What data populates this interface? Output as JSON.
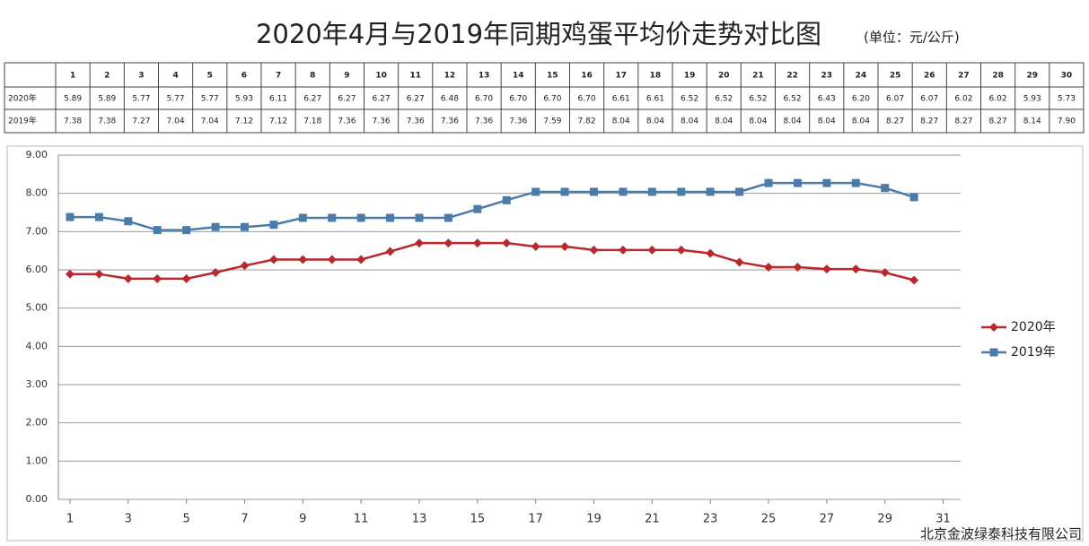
{
  "chart_data": {
    "type": "line",
    "title": "2020年4月与2019年同期鸡蛋平均价走势对比图",
    "subtitle": "(单位：元/公斤)",
    "watermark": "北京金波绿泰科技有限公司",
    "x": [
      1,
      2,
      3,
      4,
      5,
      6,
      7,
      8,
      9,
      10,
      11,
      12,
      13,
      14,
      15,
      16,
      17,
      18,
      19,
      20,
      21,
      22,
      23,
      24,
      25,
      26,
      27,
      28,
      29,
      30
    ],
    "series": [
      {
        "name": "2020年",
        "color": "#b8282e",
        "marker": "diamond",
        "values": [
          5.89,
          5.89,
          5.77,
          5.77,
          5.77,
          5.93,
          6.11,
          6.27,
          6.27,
          6.27,
          6.27,
          6.48,
          6.7,
          6.7,
          6.7,
          6.7,
          6.61,
          6.61,
          6.52,
          6.52,
          6.52,
          6.52,
          6.43,
          6.2,
          6.07,
          6.07,
          6.02,
          6.02,
          5.93,
          5.73
        ],
        "value_labels": [
          "5.89",
          "5.89",
          "5.77",
          "5.77",
          "5.77",
          "5.93",
          "6.11",
          "6.27",
          "6.27",
          "6.27",
          "6.27",
          "6.48",
          "6.70",
          "6.70",
          "6.70",
          "6.70",
          "6.61",
          "6.61",
          "6.52",
          "6.52",
          "6.52",
          "6.52",
          "6.43",
          "6.20",
          "6.07",
          "6.07",
          "6.02",
          "6.02",
          "5.93",
          "5.73"
        ]
      },
      {
        "name": "2019年",
        "color": "#4b7ba8",
        "marker": "square",
        "values": [
          7.38,
          7.38,
          7.27,
          7.04,
          7.04,
          7.12,
          7.12,
          7.18,
          7.36,
          7.36,
          7.36,
          7.36,
          7.36,
          7.36,
          7.59,
          7.82,
          8.04,
          8.04,
          8.04,
          8.04,
          8.04,
          8.04,
          8.04,
          8.04,
          8.27,
          8.27,
          8.27,
          8.27,
          8.14,
          7.9
        ],
        "value_labels": [
          "7.38",
          "7.38",
          "7.27",
          "7.04",
          "7.04",
          "7.12",
          "7.12",
          "7.18",
          "7.36",
          "7.36",
          "7.36",
          "7.36",
          "7.36",
          "7.36",
          "7.59",
          "7.82",
          "8.04",
          "8.04",
          "8.04",
          "8.04",
          "8.04",
          "8.04",
          "8.04",
          "8.04",
          "8.27",
          "8.27",
          "8.27",
          "8.27",
          "8.14",
          "7.90"
        ]
      }
    ],
    "xlim": [
      0.6,
      31.6
    ],
    "xticks": [
      1,
      3,
      5,
      7,
      9,
      11,
      13,
      15,
      17,
      19,
      21,
      23,
      25,
      27,
      29,
      31
    ],
    "ylim": [
      0,
      9
    ],
    "yticks": [
      {
        "value": 0,
        "label": "0.00"
      },
      {
        "value": 1,
        "label": "1.00"
      },
      {
        "value": 2,
        "label": "2.00"
      },
      {
        "value": 3,
        "label": "3.00"
      },
      {
        "value": 4,
        "label": "4.00"
      },
      {
        "value": 5,
        "label": "5.00"
      },
      {
        "value": 6,
        "label": "6.00"
      },
      {
        "value": 7,
        "label": "7.00"
      },
      {
        "value": 8,
        "label": "8.00"
      },
      {
        "value": 9,
        "label": "9.00"
      }
    ],
    "grid": true,
    "legend": "right"
  }
}
